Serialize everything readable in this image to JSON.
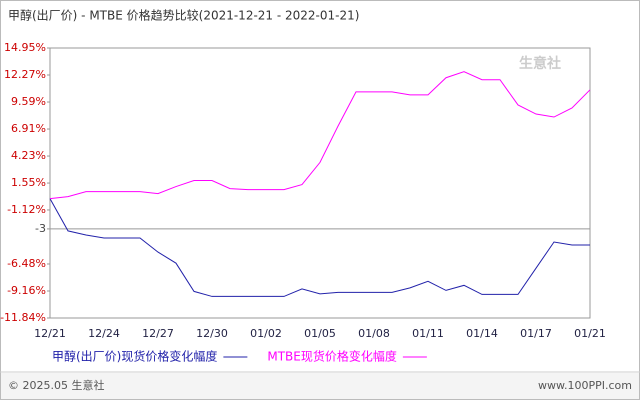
{
  "chart_data": {
    "type": "line",
    "title": "甲醇(出厂价) - MTBE 价格趋势比较(2021-12-21 - 2022-01-21)",
    "categories": [
      "12/21",
      null,
      null,
      "12/24",
      null,
      null,
      "12/27",
      null,
      null,
      "12/30",
      null,
      null,
      "01/02",
      null,
      null,
      "01/05",
      null,
      null,
      "01/08",
      null,
      null,
      "01/11",
      null,
      null,
      "01/14",
      null,
      null,
      "01/17",
      null,
      null,
      "01/21"
    ],
    "series": [
      {
        "name": "甲醇(出厂价)现货价格变化幅度",
        "color": "#2222aa",
        "values": [
          0,
          -3.2,
          -3.6,
          -3.9,
          -3.9,
          -3.9,
          -5.3,
          -6.4,
          -9.2,
          -9.7,
          -9.7,
          -9.7,
          -9.7,
          -9.7,
          -8.95,
          -9.45,
          -9.3,
          -9.3,
          -9.3,
          -9.3,
          -8.85,
          -8.2,
          -9.1,
          -8.6,
          -9.5,
          -9.5,
          -9.5,
          -6.9,
          -4.3,
          -4.6,
          -4.6
        ]
      },
      {
        "name": "MTBE现货价格变化幅度",
        "color": "#ff00ff",
        "values": [
          0,
          0.2,
          0.7,
          0.7,
          0.7,
          0.7,
          0.5,
          1.2,
          1.8,
          1.8,
          1.0,
          0.9,
          0.9,
          0.9,
          1.4,
          3.6,
          7.2,
          10.6,
          10.6,
          10.6,
          10.3,
          10.3,
          12.0,
          12.6,
          11.8,
          11.8,
          9.3,
          8.4,
          8.1,
          9.0,
          10.8
        ]
      }
    ],
    "ylim": [
      -11.84,
      14.95
    ],
    "yticks": [
      {
        "value": 14.95,
        "label": "14.95%"
      },
      {
        "value": 12.27,
        "label": "12.27%"
      },
      {
        "value": 9.59,
        "label": "9.59%"
      },
      {
        "value": 6.91,
        "label": "6.91%"
      },
      {
        "value": 4.23,
        "label": "4.23%"
      },
      {
        "value": 1.55,
        "label": "1.55%"
      },
      {
        "value": -1.12,
        "label": "-1.12%"
      },
      -3,
      {
        "value": -6.48,
        "label": "-6.48%"
      },
      {
        "value": -9.16,
        "label": "-9.16%"
      },
      {
        "value": -11.84,
        "label": "-11.84%"
      }
    ],
    "reference_line": -3,
    "grid": false,
    "legend": "bottom",
    "watermark": "生意社"
  },
  "footer": {
    "left": "© 2025.05 生意社",
    "right": "www.100PPI.com"
  }
}
